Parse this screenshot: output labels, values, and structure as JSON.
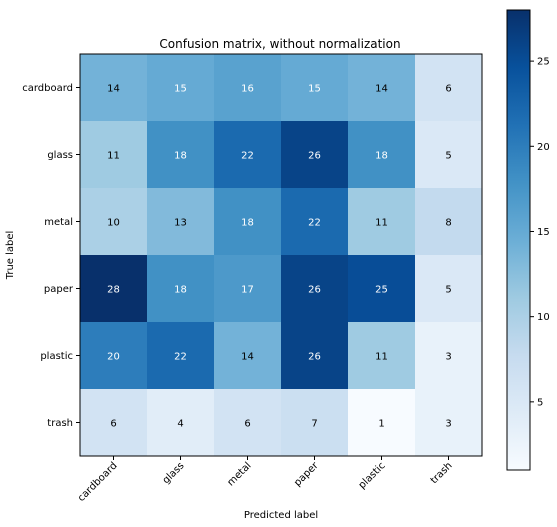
{
  "chart_data": {
    "type": "heatmap",
    "title": "Confusion matrix, without normalization",
    "xlabel": "Predicted label",
    "ylabel": "True label",
    "x_categories": [
      "cardboard",
      "glass",
      "metal",
      "paper",
      "plastic",
      "trash"
    ],
    "y_categories": [
      "cardboard",
      "glass",
      "metal",
      "paper",
      "plastic",
      "trash"
    ],
    "values": [
      [
        14,
        15,
        16,
        15,
        14,
        6
      ],
      [
        11,
        18,
        22,
        26,
        18,
        5
      ],
      [
        10,
        13,
        18,
        22,
        11,
        8
      ],
      [
        28,
        18,
        17,
        26,
        25,
        5
      ],
      [
        20,
        22,
        14,
        26,
        11,
        3
      ],
      [
        6,
        4,
        6,
        7,
        1,
        3
      ]
    ],
    "colormap": "Blues",
    "vmin": 1,
    "vmax": 28,
    "colorbar_ticks": [
      5,
      10,
      15,
      20,
      25
    ],
    "text_threshold": 14.5,
    "text_color_light": "#ffffff",
    "text_color_dark": "#000000"
  }
}
